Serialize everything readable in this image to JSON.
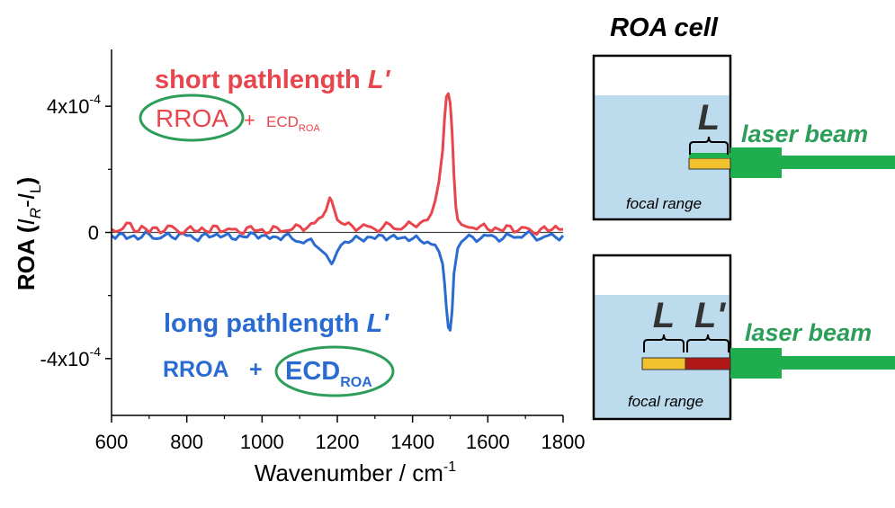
{
  "chart_data": {
    "type": "line",
    "xlabel": "Wavenumber / cm",
    "xlabel_sup": "-1",
    "ylabel": {
      "main": "ROA (",
      "i1": "I",
      "sub1": "R",
      "minus": "-",
      "i2": "I",
      "sub2": "L",
      "close": ")"
    },
    "xlim": [
      600,
      1800
    ],
    "ylim": [
      -0.00058,
      0.00058
    ],
    "xticks": [
      600,
      800,
      1000,
      1200,
      1400,
      1600,
      1800
    ],
    "xtick_labels": [
      "600",
      "800",
      "1000",
      "1200",
      "1400",
      "1600",
      "1800"
    ],
    "yticks": [
      {
        "value": 0.0004,
        "base": "4x10",
        "exp": "-4"
      },
      {
        "value": 0,
        "base": "0",
        "exp": ""
      },
      {
        "value": -0.0004,
        "base": "-4x10",
        "exp": "-4"
      }
    ],
    "series": [
      {
        "name": "short pathlength L'",
        "color": "#e8454d",
        "x": [
          600,
          620,
          640,
          660,
          680,
          700,
          720,
          740,
          760,
          780,
          800,
          820,
          840,
          860,
          880,
          900,
          920,
          940,
          960,
          980,
          1000,
          1020,
          1040,
          1060,
          1080,
          1100,
          1120,
          1140,
          1160,
          1170,
          1180,
          1185,
          1190,
          1200,
          1210,
          1220,
          1240,
          1260,
          1280,
          1300,
          1320,
          1340,
          1360,
          1380,
          1400,
          1420,
          1440,
          1450,
          1460,
          1470,
          1480,
          1485,
          1490,
          1495,
          1500,
          1505,
          1510,
          1515,
          1520,
          1530,
          1540,
          1560,
          1580,
          1600,
          1620,
          1640,
          1660,
          1680,
          1700,
          1720,
          1740,
          1760,
          1780,
          1800
        ],
        "values": [
          1e-05,
          5e-06,
          3e-05,
          5e-06,
          2e-05,
          0.0,
          1.5e-05,
          5e-06,
          2e-05,
          0.0,
          1e-05,
          5e-06,
          1.5e-05,
          0.0,
          2e-05,
          5e-06,
          1e-05,
          0.0,
          1.5e-05,
          5e-06,
          1e-05,
          0.0,
          1.5e-05,
          5e-06,
          1e-05,
          2e-05,
          1.5e-05,
          3e-05,
          5e-05,
          7e-05,
          0.00011,
          0.0001,
          8e-05,
          4e-05,
          3e-05,
          2.5e-05,
          2e-05,
          1.5e-05,
          2e-05,
          1e-05,
          1.5e-05,
          2.5e-05,
          1e-05,
          2e-05,
          2.5e-05,
          3e-05,
          4e-05,
          6e-05,
          0.0001,
          0.00016,
          0.00026,
          0.00036,
          0.00043,
          0.00044,
          0.00041,
          0.00032,
          0.00018,
          8e-05,
          4e-05,
          2.5e-05,
          2e-05,
          1.5e-05,
          2e-05,
          1e-05,
          1.5e-05,
          5e-06,
          2e-05,
          5e-06,
          1.5e-05,
          0.0,
          1e-05,
          5e-06,
          2e-05,
          1e-05
        ]
      },
      {
        "name": "long pathlength L'",
        "color": "#2a6bd1",
        "x": [
          600,
          620,
          640,
          660,
          680,
          700,
          720,
          740,
          760,
          780,
          800,
          820,
          840,
          860,
          880,
          900,
          920,
          940,
          960,
          980,
          1000,
          1020,
          1040,
          1060,
          1080,
          1100,
          1120,
          1140,
          1150,
          1160,
          1170,
          1180,
          1185,
          1190,
          1200,
          1210,
          1220,
          1240,
          1260,
          1280,
          1300,
          1320,
          1340,
          1360,
          1380,
          1400,
          1420,
          1440,
          1460,
          1470,
          1480,
          1485,
          1490,
          1495,
          1500,
          1505,
          1510,
          1520,
          1530,
          1540,
          1560,
          1580,
          1600,
          1620,
          1640,
          1660,
          1680,
          1700,
          1720,
          1740,
          1760,
          1780,
          1800
        ],
        "values": [
          -1e-05,
          -5e-06,
          -2e-05,
          -1e-05,
          -1.5e-05,
          -5e-06,
          -2e-05,
          -1e-05,
          -1.5e-05,
          -5e-06,
          -1e-05,
          -2e-05,
          -1e-05,
          -1.5e-05,
          -5e-06,
          -1e-05,
          -2e-05,
          -1e-05,
          -1.5e-05,
          -5e-06,
          -1e-05,
          -2e-05,
          -1.5e-05,
          -1e-05,
          -2e-05,
          -3e-05,
          -2.5e-05,
          -4e-05,
          -5e-05,
          -6e-05,
          -7e-05,
          -9e-05,
          -0.0001,
          -9e-05,
          -6e-05,
          -4e-05,
          -3e-05,
          -2.5e-05,
          -2e-05,
          -1.5e-05,
          -2e-05,
          -1e-05,
          -1.5e-05,
          -2e-05,
          -1.5e-05,
          -2e-05,
          -2.5e-05,
          -3e-05,
          -4e-05,
          -6e-05,
          -0.0001,
          -0.00016,
          -0.00024,
          -0.0003,
          -0.00031,
          -0.00025,
          -0.00013,
          -5e-05,
          -3e-05,
          -2e-05,
          -1.5e-05,
          -2e-05,
          -1e-05,
          -1.5e-05,
          -2e-05,
          -1e-05,
          -1.5e-05,
          -5e-06,
          -1e-05,
          -2e-05,
          -1e-05,
          -1.5e-05,
          -1e-05
        ]
      }
    ]
  },
  "annotations": {
    "short": {
      "text": "short pathlength ",
      "var": "L'"
    },
    "short_eq": {
      "rroa": "RROA",
      "plus": "+",
      "ecd": "ECD",
      "ecd_sub": "ROA"
    },
    "long": {
      "text": "long pathlength ",
      "var": "L'"
    },
    "long_eq": {
      "rroa": "RROA",
      "plus": "+",
      "ecd": "ECD",
      "ecd_sub": "ROA"
    }
  },
  "cell_diagram": {
    "title": "ROA cell",
    "top": {
      "L_label": "L",
      "laser_label": "laser beam",
      "focal_label": "focal range"
    },
    "bottom": {
      "L_label": "L",
      "Lp_label": "L'",
      "laser_label": "laser beam",
      "focal_label": "focal range"
    },
    "colors": {
      "liquid": "#bcdcee",
      "focal": "#f2c12e",
      "focal_extra": "#b01818",
      "beam": "#1fae4e",
      "label": "#2d9e5a",
      "ellipse": "#2d9e5a"
    }
  }
}
